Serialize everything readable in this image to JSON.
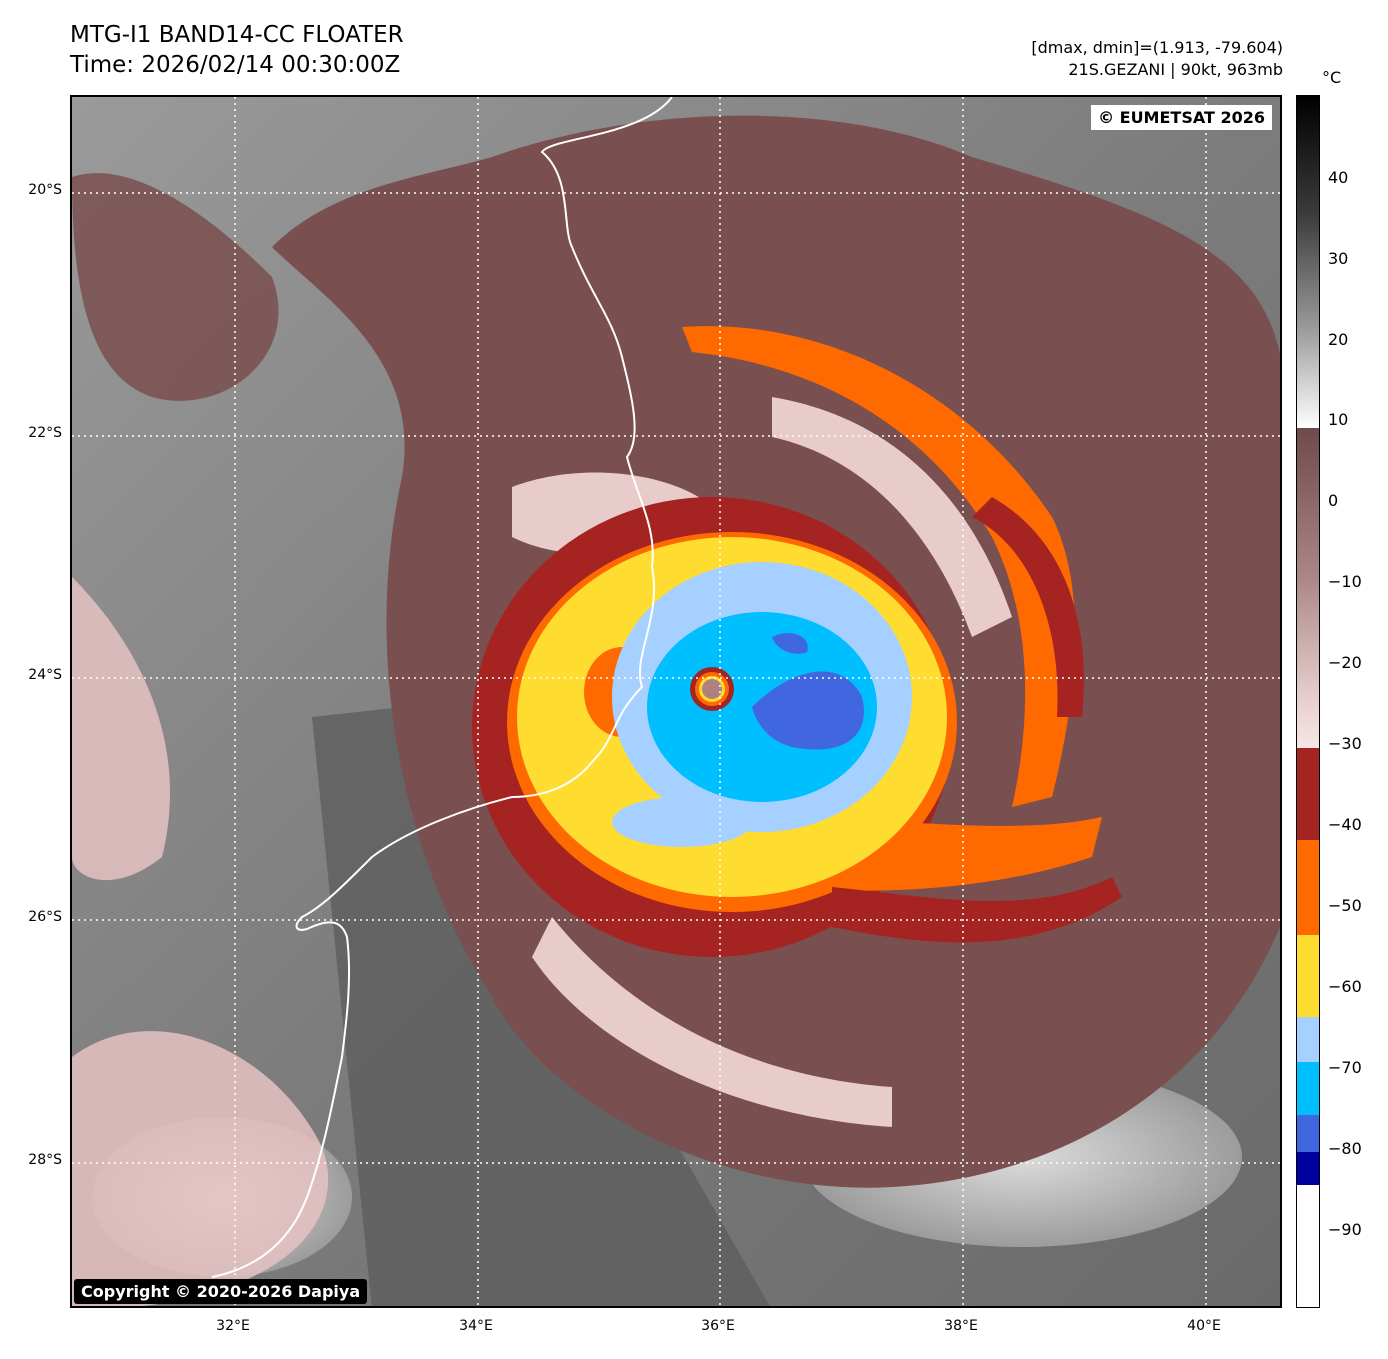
{
  "header": {
    "title_line1": "MTG-I1 BAND14-CC FLOATER",
    "title_line2": "Time: 2026/02/14 00:30:00Z",
    "dmax_dmin": "[dmax, dmin]=(1.913, -79.604)",
    "storm_info": "21S.GEZANI | 90kt, 963mb"
  },
  "map": {
    "credit_top": "© EUMETSAT 2026",
    "credit_bottom": "Copyright © 2020-2026 Dapiya",
    "lat_labels": [
      "20°S",
      "22°S",
      "24°S",
      "26°S",
      "28°S"
    ],
    "lon_labels": [
      "32°E",
      "34°E",
      "36°E",
      "38°E",
      "40°E"
    ]
  },
  "colorbar": {
    "unit": "°C",
    "labels": [
      "40",
      "30",
      "20",
      "10",
      "0",
      "−10",
      "−20",
      "−30",
      "−40",
      "−50",
      "−60",
      "−70",
      "−80",
      "−90"
    ],
    "colors": {
      "warm_white": "#ffffff",
      "warm_black": "#000000",
      "brown": "#7a4f4f",
      "pink": "#f3d8d8",
      "dark_red": "#a52422",
      "orange": "#ff6a00",
      "yellow": "#ffdc30",
      "light_blue": "#a6d0ff",
      "cyan": "#00bfff",
      "royal_blue": "#4167e0",
      "navy": "#0000a0",
      "coldest": "#ffffff"
    }
  }
}
